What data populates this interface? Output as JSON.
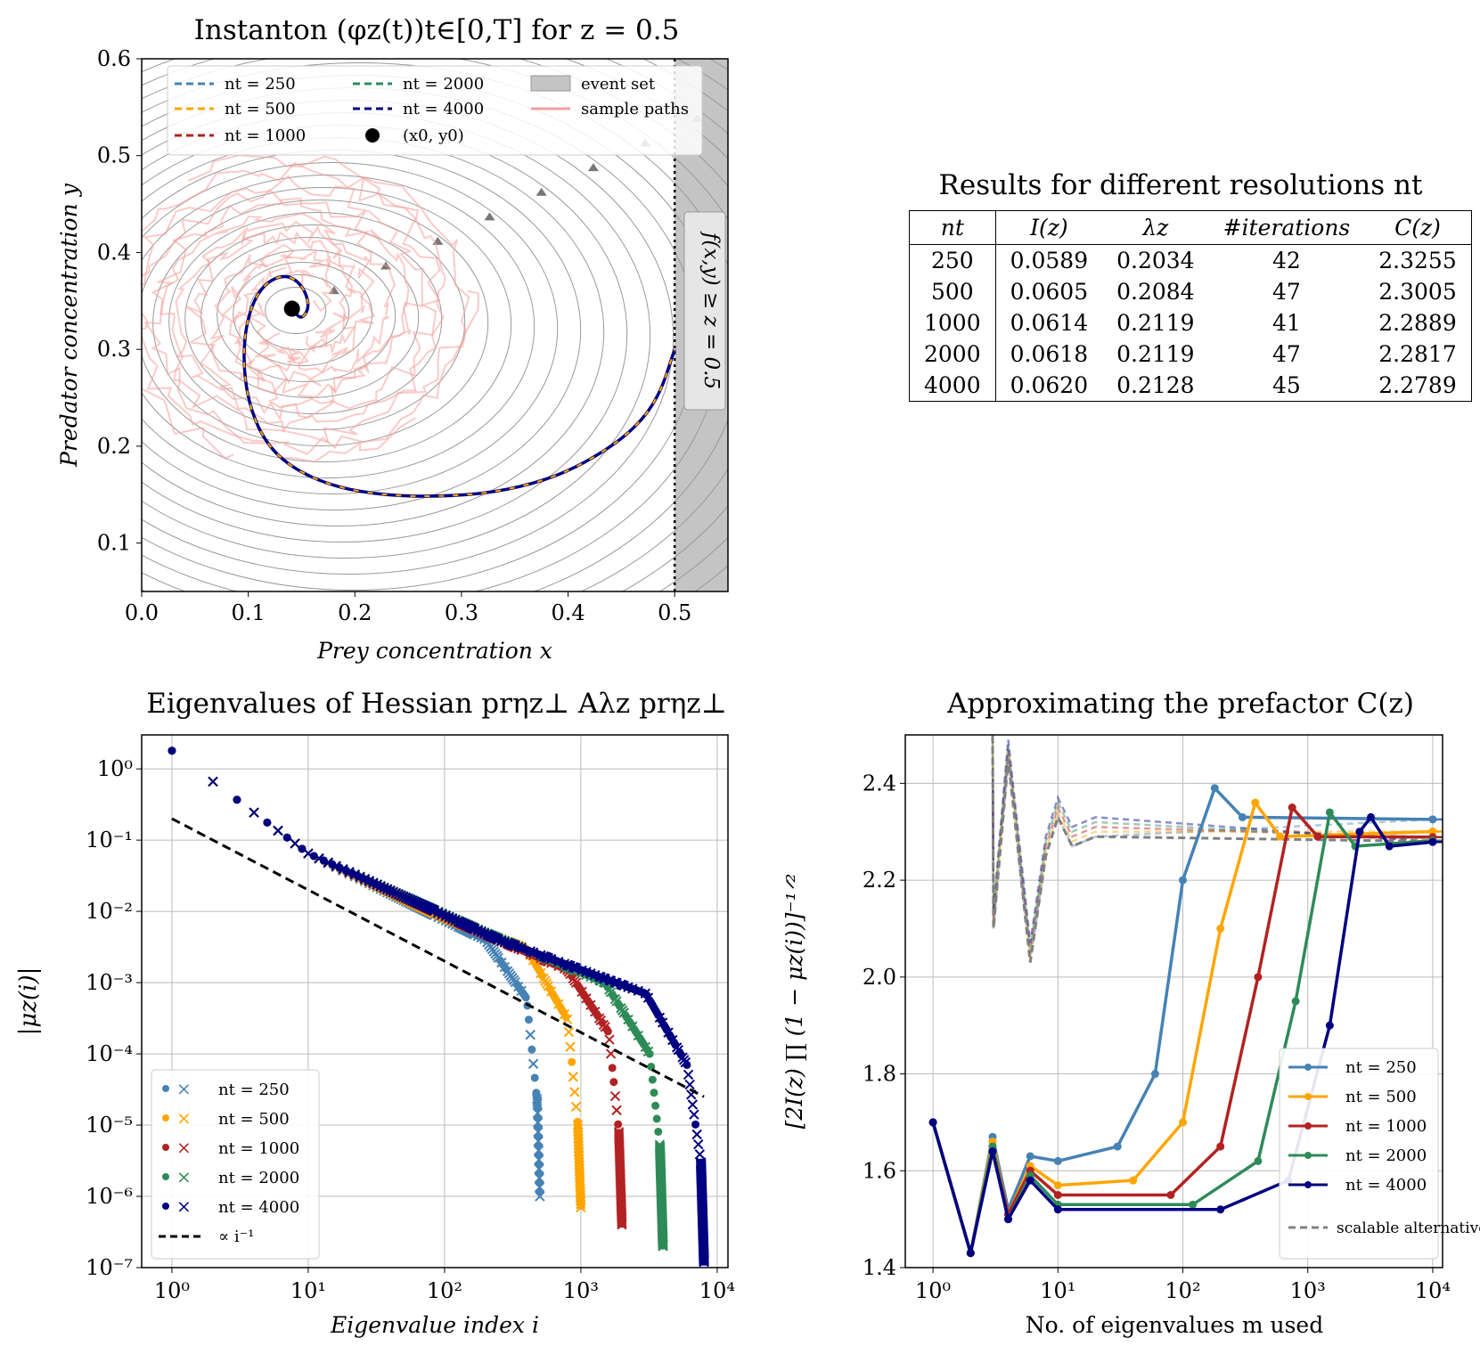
{
  "chart_data": [
    {
      "type": "line",
      "id": "instanton",
      "title": "Instanton (φz(t))t∈[0,T] for z = 0.5",
      "xlabel": "Prey concentration x",
      "ylabel": "Predator concentration y",
      "xlim": [
        0.0,
        0.55
      ],
      "ylim": [
        0.05,
        0.6
      ],
      "xticks": [
        "0.0",
        "0.1",
        "0.2",
        "0.3",
        "0.4",
        "0.5"
      ],
      "yticks": [
        "0.1",
        "0.2",
        "0.3",
        "0.4",
        "0.5",
        "0.6"
      ],
      "legend": [
        "nt = 250",
        "nt = 500",
        "nt = 1000",
        "nt = 2000",
        "nt = 4000",
        "(x0, y0)",
        "event set",
        "sample paths"
      ],
      "event_label": "f(x,y) ≥ z = 0.5",
      "start_point": [
        0.141,
        0.342
      ],
      "event_threshold_x": 0.5,
      "instanton_path": [
        [
          0.141,
          0.342
        ],
        [
          0.15,
          0.33
        ],
        [
          0.158,
          0.345
        ],
        [
          0.15,
          0.368
        ],
        [
          0.133,
          0.378
        ],
        [
          0.112,
          0.365
        ],
        [
          0.099,
          0.333
        ],
        [
          0.095,
          0.29
        ],
        [
          0.1,
          0.245
        ],
        [
          0.115,
          0.205
        ],
        [
          0.14,
          0.178
        ],
        [
          0.18,
          0.158
        ],
        [
          0.23,
          0.149
        ],
        [
          0.28,
          0.148
        ],
        [
          0.33,
          0.152
        ],
        [
          0.38,
          0.165
        ],
        [
          0.42,
          0.185
        ],
        [
          0.46,
          0.215
        ],
        [
          0.485,
          0.25
        ],
        [
          0.5,
          0.3
        ]
      ],
      "colors": {
        "nt250": "#4682b4",
        "nt500": "#ffa500",
        "nt1000": "#b22222",
        "nt2000": "#2e8b57",
        "nt4000": "#000080",
        "sample": "#f4a09a",
        "event": "#c4c4c4"
      }
    },
    {
      "type": "scatter",
      "id": "eigenvalues",
      "title": "Eigenvalues of Hessian prηz⊥ Aλz prηz⊥",
      "xlabel": "Eigenvalue index i",
      "ylabel": "|μz(i)|",
      "xscale": "log",
      "yscale": "log",
      "xlim": [
        0.6,
        12000
      ],
      "ylim": [
        1e-07,
        3
      ],
      "xticks": [
        "10⁰",
        "10¹",
        "10²",
        "10³",
        "10⁴"
      ],
      "yticks": [
        "10⁰",
        "10⁻¹",
        "10⁻²",
        "10⁻³",
        "10⁻⁴",
        "10⁻⁵",
        "10⁻⁶",
        "10⁻⁷"
      ],
      "legend": [
        "nt = 250",
        "nt = 500",
        "nt = 1000",
        "nt = 2000",
        "nt = 4000",
        "∝ i⁻¹"
      ],
      "reference_line": {
        "label": "∝ i⁻¹",
        "x": [
          1,
          8000
        ],
        "y": [
          0.2,
          2.5e-05
        ]
      },
      "series": [
        {
          "name": "nt = 250",
          "n": 500,
          "kink": [
            [
              1,
              1.8
            ],
            [
              10,
              0.065
            ],
            [
              60,
              0.012
            ],
            [
              200,
              0.004
            ],
            [
              400,
              0.0006
            ],
            [
              480,
              2e-05
            ],
            [
              500,
              1e-06
            ]
          ]
        },
        {
          "name": "nt = 500",
          "n": 1000,
          "kink": [
            [
              1,
              1.8
            ],
            [
              10,
              0.065
            ],
            [
              100,
              0.008
            ],
            [
              400,
              0.003
            ],
            [
              800,
              0.0003
            ],
            [
              950,
              1e-05
            ],
            [
              1000,
              7e-07
            ]
          ]
        },
        {
          "name": "nt = 1000",
          "n": 2000,
          "kink": [
            [
              1,
              1.8
            ],
            [
              10,
              0.065
            ],
            [
              150,
              0.006
            ],
            [
              800,
              0.0015
            ],
            [
              1600,
              0.0002
            ],
            [
              1900,
              8e-06
            ],
            [
              2000,
              4e-07
            ]
          ]
        },
        {
          "name": "nt = 2000",
          "n": 4000,
          "kink": [
            [
              1,
              1.8
            ],
            [
              10,
              0.065
            ],
            [
              200,
              0.005
            ],
            [
              1500,
              0.001
            ],
            [
              3200,
              0.0001
            ],
            [
              3800,
              5e-06
            ],
            [
              4000,
              2e-07
            ]
          ]
        },
        {
          "name": "nt = 4000",
          "n": 8000,
          "kink": [
            [
              1,
              1.8
            ],
            [
              10,
              0.065
            ],
            [
              250,
              0.004
            ],
            [
              3000,
              0.0007
            ],
            [
              6000,
              7e-05
            ],
            [
              7600,
              3e-06
            ],
            [
              8000,
              1.2e-07
            ]
          ]
        }
      ]
    },
    {
      "type": "line",
      "id": "prefactor",
      "title": "Approximating the prefactor C(z)",
      "xlabel": "No. of eigenvalues m used",
      "ylabel": "[2I(z) ∏ (1 − μz(i))]⁻¹ᐟ²",
      "xscale": "log",
      "xlim": [
        0.6,
        12000
      ],
      "ylim": [
        1.4,
        2.5
      ],
      "xticks": [
        "10⁰",
        "10¹",
        "10²",
        "10³",
        "10⁴"
      ],
      "yticks": [
        "1.4",
        "1.6",
        "1.8",
        "2.0",
        "2.2",
        "2.4"
      ],
      "legend": [
        "nt = 250",
        "nt = 500",
        "nt = 1000",
        "nt = 2000",
        "nt = 4000",
        "scalable alternative"
      ],
      "series": [
        {
          "name": "nt = 250",
          "final": 2.3255,
          "rise": [
            [
              1,
              1.7
            ],
            [
              2,
              1.43
            ],
            [
              3,
              1.67
            ],
            [
              4,
              1.52
            ],
            [
              6,
              1.63
            ],
            [
              10,
              1.62
            ],
            [
              30,
              1.65
            ],
            [
              60,
              1.8
            ],
            [
              100,
              2.2
            ],
            [
              180,
              2.39
            ],
            [
              300,
              2.33
            ],
            [
              10000,
              2.3255
            ]
          ]
        },
        {
          "name": "nt = 500",
          "final": 2.3005,
          "rise": [
            [
              1,
              1.7
            ],
            [
              2,
              1.43
            ],
            [
              3,
              1.66
            ],
            [
              4,
              1.51
            ],
            [
              6,
              1.61
            ],
            [
              10,
              1.57
            ],
            [
              40,
              1.58
            ],
            [
              100,
              1.7
            ],
            [
              200,
              2.1
            ],
            [
              380,
              2.36
            ],
            [
              600,
              2.29
            ],
            [
              10000,
              2.3005
            ]
          ]
        },
        {
          "name": "nt = 1000",
          "final": 2.2889,
          "rise": [
            [
              1,
              1.7
            ],
            [
              2,
              1.43
            ],
            [
              3,
              1.65
            ],
            [
              4,
              1.51
            ],
            [
              6,
              1.6
            ],
            [
              10,
              1.55
            ],
            [
              80,
              1.55
            ],
            [
              200,
              1.65
            ],
            [
              400,
              2.0
            ],
            [
              750,
              2.35
            ],
            [
              1200,
              2.29
            ],
            [
              10000,
              2.2889
            ]
          ]
        },
        {
          "name": "nt = 2000",
          "final": 2.2817,
          "rise": [
            [
              1,
              1.7
            ],
            [
              2,
              1.43
            ],
            [
              3,
              1.65
            ],
            [
              4,
              1.5
            ],
            [
              6,
              1.59
            ],
            [
              10,
              1.53
            ],
            [
              120,
              1.53
            ],
            [
              400,
              1.62
            ],
            [
              800,
              1.95
            ],
            [
              1500,
              2.34
            ],
            [
              2400,
              2.27
            ],
            [
              10000,
              2.2817
            ]
          ]
        },
        {
          "name": "nt = 4000",
          "final": 2.2789,
          "rise": [
            [
              1,
              1.7
            ],
            [
              2,
              1.43
            ],
            [
              3,
              1.64
            ],
            [
              4,
              1.5
            ],
            [
              6,
              1.58
            ],
            [
              10,
              1.52
            ],
            [
              200,
              1.52
            ],
            [
              700,
              1.58
            ],
            [
              1500,
              1.9
            ],
            [
              2600,
              2.3
            ],
            [
              3200,
              2.33
            ],
            [
              4500,
              2.27
            ],
            [
              10000,
              2.2789
            ]
          ]
        }
      ],
      "scalable": [
        [
          3,
          2.5
        ],
        [
          3.05,
          2.1
        ],
        [
          4,
          2.45
        ],
        [
          6,
          2.03
        ],
        [
          8,
          2.25
        ],
        [
          10,
          2.33
        ],
        [
          13,
          2.27
        ],
        [
          20,
          2.29
        ],
        [
          10000,
          2.28
        ]
      ]
    }
  ],
  "results_table": {
    "title": "Results for different resolutions nt",
    "headers": [
      "nt",
      "I(z)",
      "λz",
      "#iterations",
      "C(z)"
    ],
    "rows": [
      [
        "250",
        "0.0589",
        "0.2034",
        "42",
        "2.3255"
      ],
      [
        "500",
        "0.0605",
        "0.2084",
        "47",
        "2.3005"
      ],
      [
        "1000",
        "0.0614",
        "0.2119",
        "41",
        "2.2889"
      ],
      [
        "2000",
        "0.0618",
        "0.2119",
        "47",
        "2.2817"
      ],
      [
        "4000",
        "0.0620",
        "0.2128",
        "45",
        "2.2789"
      ]
    ]
  }
}
